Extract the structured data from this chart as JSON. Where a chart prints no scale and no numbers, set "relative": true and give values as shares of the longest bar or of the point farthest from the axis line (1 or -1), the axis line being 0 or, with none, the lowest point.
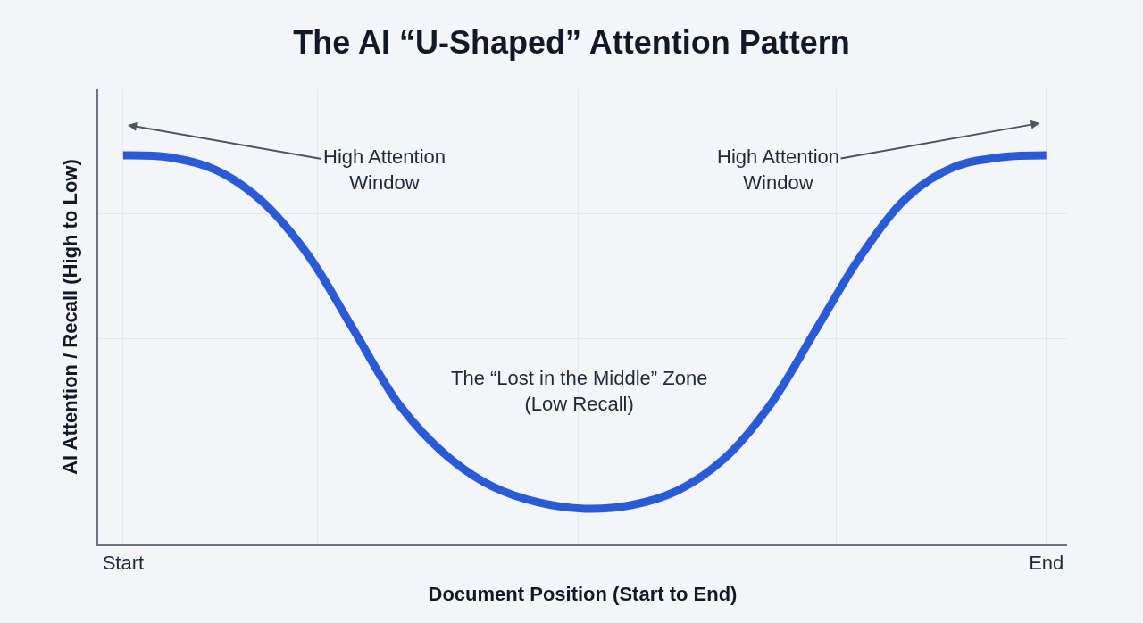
{
  "chart_data": {
    "type": "line",
    "title": "The AI “U-Shaped” Attention Pattern",
    "xlabel": "Document Position (Start to End)",
    "ylabel": "AI Attention / Recall (High to Low)",
    "categories": [
      "Start",
      null,
      null,
      null,
      null,
      null,
      null,
      null,
      null,
      null,
      null,
      null,
      null,
      null,
      null,
      null,
      null,
      null,
      null,
      null,
      "End"
    ],
    "series": [
      {
        "color": "#2a5bd7",
        "values": [
          1.0,
          0.995,
          0.963,
          0.883,
          0.745,
          0.55,
          0.356,
          0.229,
          0.149,
          0.108,
          0.092,
          0.101,
          0.138,
          0.218,
          0.356,
          0.55,
          0.745,
          0.894,
          0.97,
          0.995,
          1.0
        ]
      }
    ],
    "relative": true,
    "grid": true,
    "marker": "none",
    "line_style": "solid",
    "annotations": [
      "High Attention Window",
      "High Attention Window",
      "The “Lost in the Middle” Zone (Low Recall)"
    ]
  }
}
